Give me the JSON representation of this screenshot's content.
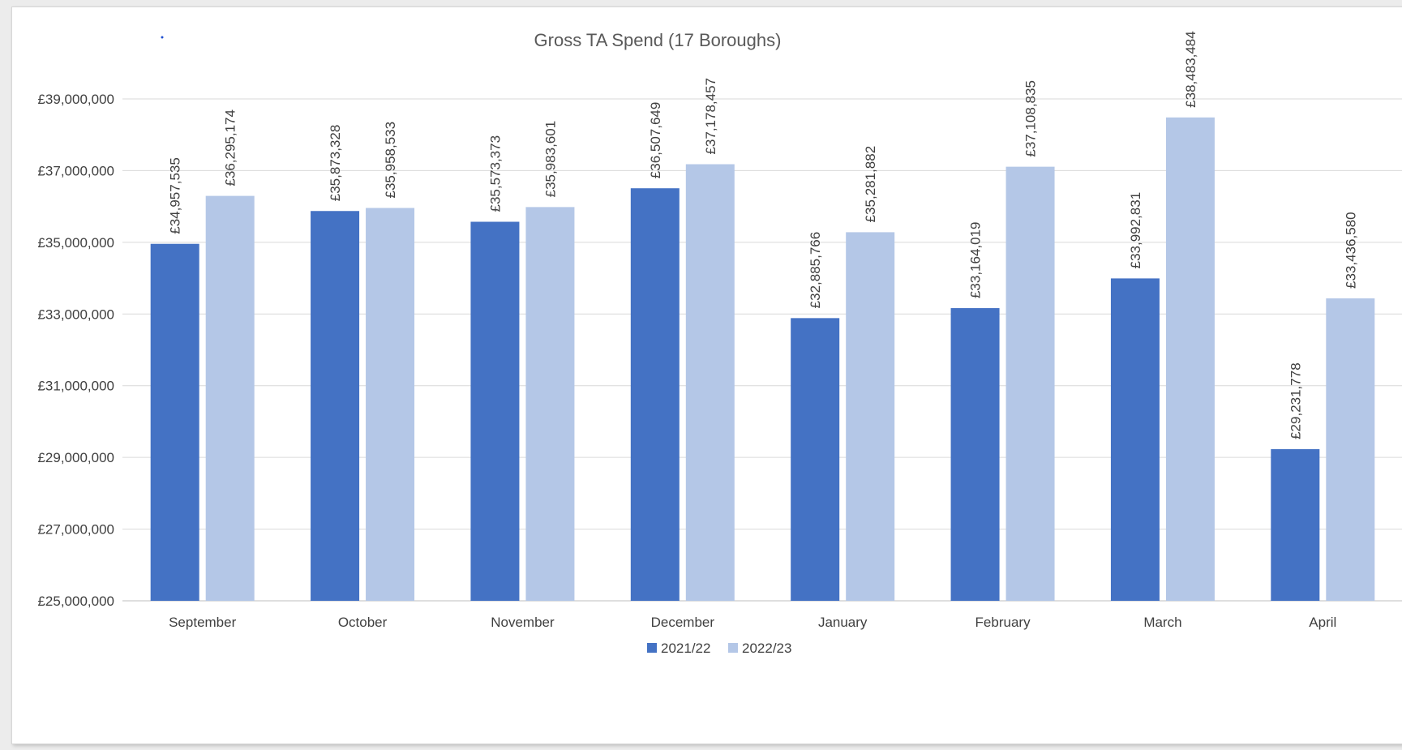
{
  "colors": {
    "series_2021_22": "#4472c4",
    "series_2022_23": "#b4c7e7",
    "gridline": "#d9d9d9",
    "axis_line": "#bfbfbf"
  },
  "chart_data": {
    "type": "bar",
    "title": "Gross TA Spend (17 Boroughs)",
    "xlabel": "",
    "ylabel": "",
    "categories": [
      "September",
      "October",
      "November",
      "December",
      "January",
      "February",
      "March",
      "April"
    ],
    "series": [
      {
        "name": "2021/22",
        "values": [
          34957535,
          35873328,
          35573373,
          36507649,
          32885766,
          33164019,
          33992831,
          29231778
        ],
        "labels": [
          "£34,957,535",
          "£35,873,328",
          "£35,573,373",
          "£36,507,649",
          "£32,885,766",
          "£33,164,019",
          "£33,992,831",
          "£29,231,778"
        ]
      },
      {
        "name": "2022/23",
        "values": [
          36295174,
          35958533,
          35983601,
          37178457,
          35281882,
          37108835,
          38483484,
          33436580
        ],
        "labels": [
          "£36,295,174",
          "£35,958,533",
          "£35,983,601",
          "£37,178,457",
          "£35,281,882",
          "£37,108,835",
          "£38,483,484",
          "£33,436,580"
        ]
      }
    ],
    "ylim": [
      25000000,
      39000000
    ],
    "yticks": [
      25000000,
      27000000,
      29000000,
      31000000,
      33000000,
      35000000,
      37000000,
      39000000
    ],
    "ytick_labels": [
      "£25,000,000",
      "£27,000,000",
      "£29,000,000",
      "£31,000,000",
      "£33,000,000",
      "£35,000,000",
      "£37,000,000",
      "£39,000,000"
    ],
    "grid": true,
    "legend_position": "bottom"
  }
}
